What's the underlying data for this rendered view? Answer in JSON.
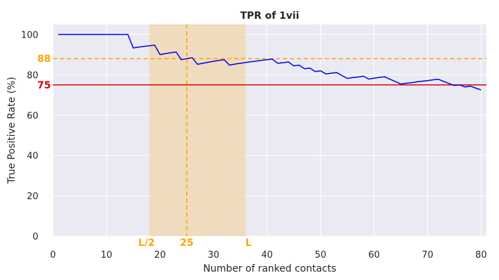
{
  "chart_data": {
    "type": "line",
    "title": "TPR of 1vii",
    "xlabel": "Number of ranked contacts",
    "ylabel": "True Positive Rate (%)",
    "xlim": [
      0,
      81
    ],
    "ylim": [
      0,
      105
    ],
    "x_ticks": [
      0,
      10,
      20,
      30,
      40,
      50,
      60,
      70,
      80
    ],
    "y_ticks": [
      0,
      20,
      40,
      60,
      80,
      100
    ],
    "grid": true,
    "colors": {
      "background": "#eaeaf2",
      "grid": "#ffffff",
      "line": "#0000ee",
      "orange": "#ffa500",
      "red": "#dd0000",
      "band": "#f0d9b5"
    },
    "series": [
      {
        "x": [
          1,
          2,
          3,
          4,
          5,
          6,
          7,
          8,
          9,
          10,
          11,
          12,
          13,
          14,
          15,
          16,
          17,
          18,
          19,
          20,
          21,
          22,
          23,
          24,
          25,
          26,
          27,
          28,
          29,
          30,
          31,
          32,
          33,
          34,
          35,
          36,
          37,
          38,
          39,
          40,
          41,
          42,
          43,
          44,
          45,
          46,
          47,
          48,
          49,
          50,
          51,
          52,
          53,
          54,
          55,
          56,
          57,
          58,
          59,
          60,
          61,
          62,
          63,
          64,
          65,
          66,
          67,
          68,
          69,
          70,
          71,
          72,
          73,
          74,
          75,
          76,
          77,
          78,
          79,
          80
        ],
        "values": [
          100,
          100,
          100,
          100,
          100,
          100,
          100,
          100,
          100,
          100,
          100,
          100,
          100,
          100,
          93.3,
          93.75,
          94.1,
          94.4,
          94.7,
          90,
          90.5,
          90.9,
          91.3,
          87.5,
          88,
          88.5,
          85.2,
          85.7,
          86.2,
          86.7,
          87.1,
          87.5,
          84.8,
          85.3,
          85.7,
          86.1,
          86.5,
          86.8,
          87.2,
          87.5,
          87.8,
          85.7,
          86.0,
          86.4,
          84.4,
          84.8,
          83.0,
          83.3,
          81.6,
          82.0,
          80.4,
          80.8,
          81.1,
          79.6,
          78.2,
          78.6,
          78.9,
          79.3,
          77.9,
          78.3,
          78.7,
          79.0,
          77.8,
          76.6,
          75.4,
          75.8,
          76.1,
          76.5,
          76.8,
          77.1,
          77.5,
          77.8,
          76.7,
          75.7,
          74.7,
          75.0,
          74.0,
          74.4,
          73.4,
          72.5
        ]
      }
    ],
    "annotations": {
      "hline_orange": {
        "y": 88,
        "label": "88"
      },
      "hline_red": {
        "y": 75,
        "label": "75"
      },
      "vline_orange": {
        "x": 25,
        "label": "25"
      },
      "band": {
        "x0": 18,
        "x1": 36
      },
      "x_marks": [
        {
          "x": 18,
          "label": "L/2"
        },
        {
          "x": 36,
          "label": "L"
        }
      ]
    }
  }
}
